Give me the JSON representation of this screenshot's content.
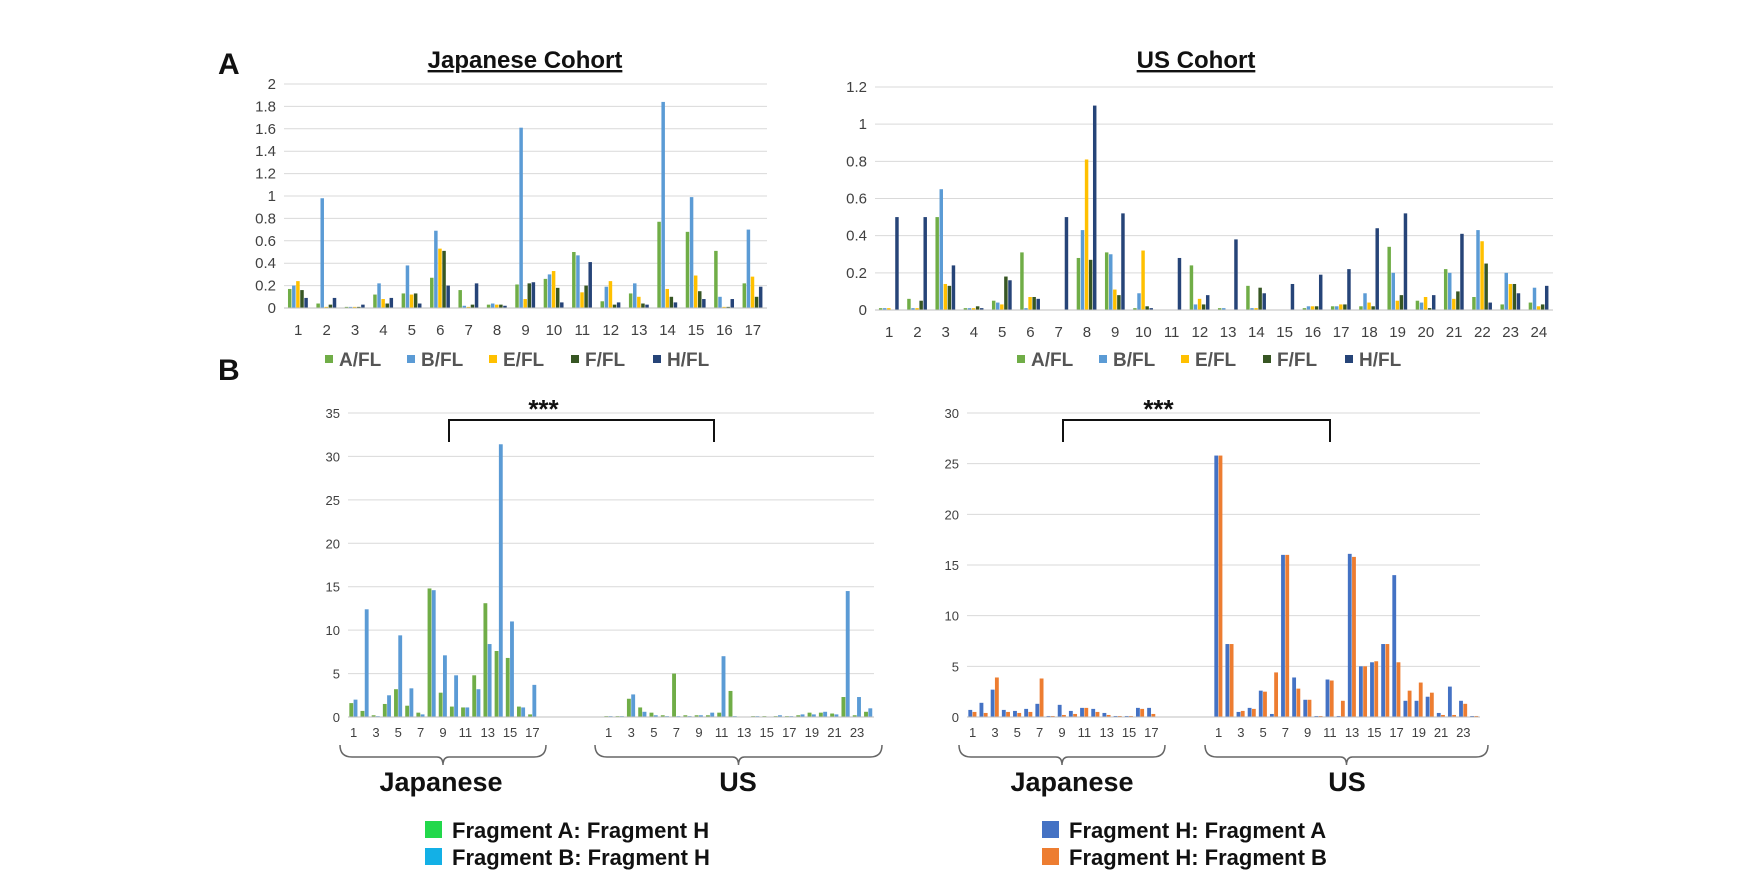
{
  "panel_labels": {
    "a": "A",
    "b": "B"
  },
  "chart_data": [
    {
      "id": "A-left",
      "type": "bar",
      "title": "Japanese Cohort",
      "ylim": [
        0,
        2
      ],
      "yticks": [
        "0",
        "0.2",
        "0.4",
        "0.6",
        "0.8",
        "1",
        "1.2",
        "1.4",
        "1.6",
        "1.8",
        "2"
      ],
      "categories": [
        "1",
        "2",
        "3",
        "4",
        "5",
        "6",
        "7",
        "8",
        "9",
        "10",
        "11",
        "12",
        "13",
        "14",
        "15",
        "16",
        "17"
      ],
      "legend_position": "bottom",
      "grid": true,
      "series": [
        {
          "name": "A/FL",
          "color": "#70ad47",
          "values": [
            0.17,
            0.04,
            0.01,
            0.12,
            0.13,
            0.27,
            0.16,
            0.03,
            0.21,
            0.26,
            0.5,
            0.06,
            0.13,
            0.77,
            0.68,
            0.51,
            0.22
          ]
        },
        {
          "name": "B/FL",
          "color": "#5b9bd5",
          "values": [
            0.2,
            0.98,
            0.01,
            0.22,
            0.38,
            0.69,
            0.02,
            0.04,
            1.61,
            0.3,
            0.47,
            0.19,
            0.22,
            1.84,
            0.99,
            0.1,
            0.7
          ]
        },
        {
          "name": "E/FL",
          "color": "#ffc000",
          "values": [
            0.24,
            0.01,
            0.01,
            0.08,
            0.12,
            0.53,
            0.01,
            0.03,
            0.08,
            0.33,
            0.14,
            0.24,
            0.1,
            0.17,
            0.29,
            0.01,
            0.28
          ]
        },
        {
          "name": "F/FL",
          "color": "#375623",
          "values": [
            0.16,
            0.03,
            0.01,
            0.04,
            0.13,
            0.51,
            0.03,
            0.03,
            0.22,
            0.18,
            0.2,
            0.03,
            0.04,
            0.1,
            0.15,
            0.01,
            0.1
          ]
        },
        {
          "name": "H/FL",
          "color": "#264478",
          "values": [
            0.09,
            0.09,
            0.03,
            0.09,
            0.04,
            0.2,
            0.22,
            0.02,
            0.23,
            0.05,
            0.41,
            0.05,
            0.03,
            0.05,
            0.08,
            0.08,
            0.19
          ]
        }
      ]
    },
    {
      "id": "A-right",
      "type": "bar",
      "title": "US Cohort",
      "ylim": [
        0,
        1.2
      ],
      "yticks": [
        "0",
        "0.2",
        "0.4",
        "0.6",
        "0.8",
        "1",
        "1.2"
      ],
      "categories": [
        "1",
        "2",
        "3",
        "4",
        "5",
        "6",
        "7",
        "8",
        "9",
        "10",
        "11",
        "12",
        "13",
        "14",
        "15",
        "16",
        "17",
        "18",
        "19",
        "20",
        "21",
        "22",
        "23",
        "24"
      ],
      "legend_position": "bottom",
      "grid": true,
      "series": [
        {
          "name": "A/FL",
          "color": "#70ad47",
          "values": [
            0.01,
            0.06,
            0.5,
            0.01,
            0.05,
            0.31,
            0.0,
            0.28,
            0.31,
            0.01,
            0.0,
            0.24,
            0.01,
            0.13,
            0.0,
            0.01,
            0.02,
            0.02,
            0.34,
            0.05,
            0.22,
            0.07,
            0.03,
            0.04
          ]
        },
        {
          "name": "B/FL",
          "color": "#5b9bd5",
          "values": [
            0.01,
            0.01,
            0.65,
            0.01,
            0.04,
            0.01,
            0.0,
            0.43,
            0.3,
            0.09,
            0.0,
            0.03,
            0.01,
            0.01,
            0.0,
            0.02,
            0.02,
            0.09,
            0.2,
            0.04,
            0.2,
            0.43,
            0.2,
            0.12
          ]
        },
        {
          "name": "E/FL",
          "color": "#ffc000",
          "values": [
            0.01,
            0.01,
            0.14,
            0.01,
            0.03,
            0.07,
            0.0,
            0.81,
            0.11,
            0.32,
            0.0,
            0.06,
            0.0,
            0.01,
            0.0,
            0.02,
            0.03,
            0.04,
            0.05,
            0.07,
            0.06,
            0.37,
            0.14,
            0.02
          ]
        },
        {
          "name": "F/FL",
          "color": "#375623",
          "values": [
            0.0,
            0.05,
            0.13,
            0.02,
            0.18,
            0.07,
            0.0,
            0.27,
            0.08,
            0.02,
            0.0,
            0.03,
            0.0,
            0.12,
            0.0,
            0.02,
            0.03,
            0.02,
            0.08,
            0.01,
            0.1,
            0.25,
            0.14,
            0.03
          ]
        },
        {
          "name": "H/FL",
          "color": "#264478",
          "values": [
            0.5,
            0.5,
            0.24,
            0.01,
            0.16,
            0.06,
            0.5,
            1.1,
            0.52,
            0.01,
            0.28,
            0.08,
            0.38,
            0.09,
            0.14,
            0.19,
            0.22,
            0.44,
            0.52,
            0.08,
            0.41,
            0.04,
            0.09,
            0.13
          ]
        }
      ]
    },
    {
      "id": "B-left",
      "type": "bar",
      "ylim": [
        0,
        35
      ],
      "yticks": [
        "0",
        "5",
        "10",
        "15",
        "20",
        "25",
        "30",
        "35"
      ],
      "groups": [
        {
          "label": "Japanese",
          "tick_labels": [
            "1",
            "3",
            "5",
            "7",
            "9",
            "11",
            "13",
            "15",
            "17"
          ],
          "series_values": [
            [
              1.6,
              0.7,
              0.2,
              1.5,
              3.2,
              1.3,
              0.5,
              14.8,
              2.8,
              1.2,
              1.1,
              4.8,
              13.1,
              7.6,
              6.8,
              1.2,
              0.3
            ],
            [
              2.0,
              12.4,
              0.1,
              2.5,
              9.4,
              3.3,
              0.3,
              14.6,
              7.1,
              4.8,
              1.1,
              3.2,
              8.4,
              31.4,
              11.0,
              1.1,
              3.7
            ]
          ]
        },
        {
          "label": "US",
          "tick_labels": [
            "1",
            "3",
            "5",
            "7",
            "9",
            "11",
            "13",
            "15",
            "17",
            "19",
            "21",
            "23"
          ],
          "series_values": [
            [
              0.1,
              0.1,
              2.1,
              1.1,
              0.5,
              0.2,
              5.0,
              0.2,
              0.2,
              0.2,
              0.5,
              3.0,
              0.0,
              0.1,
              0.1,
              0.1,
              0.1,
              0.2,
              0.5,
              0.5,
              0.4,
              2.3,
              0.2,
              0.6
            ],
            [
              0.1,
              0.1,
              2.6,
              0.6,
              0.2,
              0.1,
              0.1,
              0.1,
              0.2,
              0.5,
              7.0,
              0.1,
              0.0,
              0.1,
              0.0,
              0.2,
              0.1,
              0.3,
              0.3,
              0.6,
              0.3,
              14.5,
              2.3,
              1.0
            ]
          ]
        }
      ],
      "series": [
        {
          "name": "Fragment A:  Fragment H",
          "color": "#70ad47",
          "legend_color": "#22d84b"
        },
        {
          "name": "Fragment B:  Fragment H",
          "color": "#5b9bd5",
          "legend_color": "#13b0e6"
        }
      ],
      "significance": "***"
    },
    {
      "id": "B-right",
      "type": "bar",
      "ylim": [
        0,
        30
      ],
      "yticks": [
        "0",
        "5",
        "10",
        "15",
        "20",
        "25",
        "30"
      ],
      "groups": [
        {
          "label": "Japanese",
          "tick_labels": [
            "1",
            "3",
            "5",
            "7",
            "9",
            "11",
            "13",
            "15",
            "17"
          ],
          "series_values": [
            [
              0.7,
              1.4,
              2.7,
              0.7,
              0.6,
              0.8,
              1.3,
              0.1,
              1.2,
              0.6,
              0.9,
              0.8,
              0.4,
              0.1,
              0.1,
              0.9,
              0.9
            ],
            [
              0.5,
              0.4,
              3.9,
              0.5,
              0.4,
              0.5,
              3.8,
              0.1,
              0.2,
              0.3,
              0.9,
              0.5,
              0.2,
              0.1,
              0.1,
              0.8,
              0.3
            ]
          ]
        },
        {
          "label": "US",
          "tick_labels": [
            "1",
            "3",
            "5",
            "7",
            "9",
            "11",
            "13",
            "15",
            "17",
            "19",
            "21",
            "23"
          ],
          "series_values": [
            [
              25.8,
              7.2,
              0.5,
              0.9,
              2.6,
              0.3,
              16.0,
              3.9,
              1.7,
              0.1,
              3.7,
              0.1,
              16.1,
              5.0,
              5.4,
              7.2,
              14.0,
              1.6,
              1.6,
              2.0,
              0.4,
              3.0,
              1.6,
              0.1
            ],
            [
              25.8,
              7.2,
              0.6,
              0.8,
              2.5,
              4.4,
              16.0,
              2.8,
              1.7,
              0.1,
              3.6,
              1.6,
              15.8,
              5.0,
              5.5,
              7.2,
              5.4,
              2.6,
              3.4,
              2.4,
              0.2,
              0.2,
              1.3,
              0.1
            ]
          ]
        }
      ],
      "series": [
        {
          "name": "Fragment H:  Fragment A",
          "color": "#4472c4"
        },
        {
          "name": "Fragment H:  Fragment B",
          "color": "#ed7d31"
        }
      ],
      "significance": "***"
    }
  ]
}
